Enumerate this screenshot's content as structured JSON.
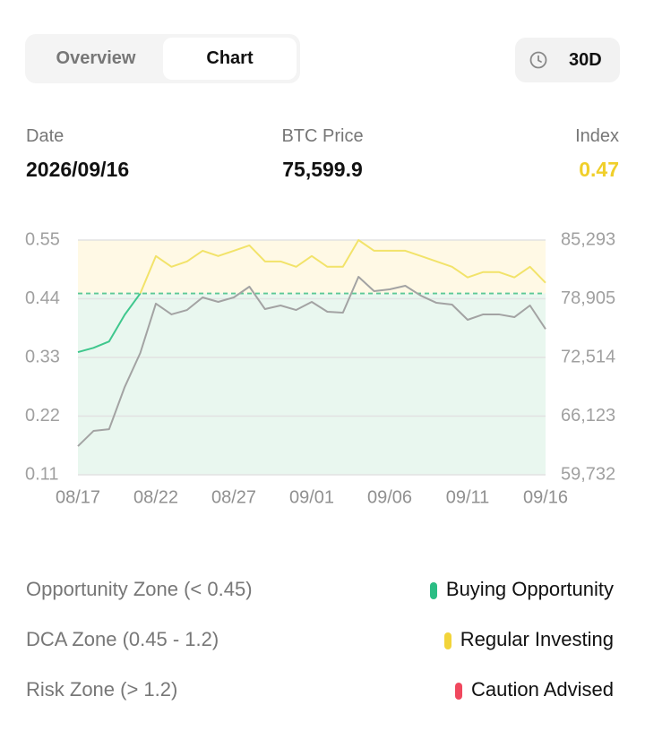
{
  "tabs": [
    "Overview",
    "Chart"
  ],
  "range": "30D",
  "header": [
    {
      "label": "Date",
      "value": "2026/09/16"
    },
    {
      "label": "BTC Price",
      "value": "75,599.9"
    },
    {
      "label": "Index",
      "value": "0.47"
    }
  ],
  "chart_data": {
    "type": "line",
    "categories": [
      "08/17",
      null,
      null,
      null,
      null,
      "08/22",
      null,
      null,
      null,
      null,
      "08/27",
      null,
      null,
      null,
      null,
      "09/01",
      null,
      null,
      null,
      null,
      "09/06",
      null,
      null,
      null,
      null,
      "09/11",
      null,
      null,
      null,
      null,
      "09/16"
    ],
    "series": [
      {
        "color": "#f2e36a",
        "below_color": "#3fc78d",
        "values": [
          0.34,
          0.348,
          0.36,
          0.41,
          0.45,
          0.52,
          0.5,
          0.51,
          0.53,
          0.52,
          0.53,
          0.54,
          0.51,
          0.51,
          0.5,
          0.52,
          0.5,
          0.5,
          0.55,
          0.53,
          0.53,
          0.53,
          0.52,
          0.51,
          0.5,
          0.48,
          0.49,
          0.49,
          0.48,
          0.5,
          0.47
        ]
      },
      {
        "color": "#a3a3a3",
        "axis": "y2",
        "values": [
          62850,
          64510,
          64700,
          69290,
          73000,
          78370,
          77200,
          77680,
          79050,
          78560,
          79050,
          80220,
          77780,
          78170,
          77680,
          78560,
          77490,
          77390,
          81290,
          79730,
          79930,
          80320,
          79240,
          78460,
          78270,
          76610,
          77200,
          77200,
          76900,
          78170,
          75599.9
        ]
      }
    ],
    "ylim": [
      0.11,
      0.55
    ],
    "yticks": [
      0.11,
      0.22,
      0.33,
      0.44,
      0.55
    ],
    "y2lim": [
      59732,
      85293
    ],
    "y2ticks": [
      {
        "value": 59732,
        "label": "59,732"
      },
      {
        "value": 66123,
        "label": "66,123"
      },
      {
        "value": 72514,
        "label": "72,514"
      },
      {
        "value": 78905,
        "label": "78,905"
      },
      {
        "value": 85293,
        "label": "85,293"
      }
    ],
    "threshold": 0.45,
    "above_fill": "#fff9e5",
    "below_fill": "#e9f7ef",
    "threshold_color": "#5cc896",
    "grid": true
  },
  "zones": [
    {
      "range": "Opportunity Zone (< 0.45)",
      "label": "Buying Opportunity",
      "color": "#2bbd84"
    },
    {
      "range": "DCA Zone (0.45 - 1.2)",
      "label": "Regular Investing",
      "color": "#f2d43a"
    },
    {
      "range": "Risk Zone (> 1.2)",
      "label": "Caution Advised",
      "color": "#f0485e"
    }
  ]
}
